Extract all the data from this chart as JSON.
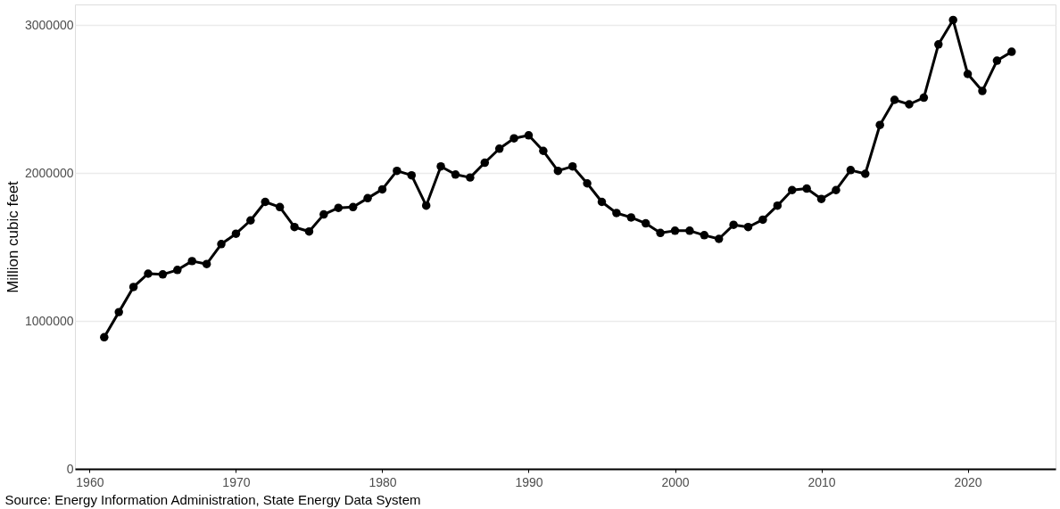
{
  "chart_data": {
    "type": "line",
    "ylabel": "Million cubic feet",
    "annotations": [
      "Source: Energy Information Administration, State Energy Data System"
    ],
    "x": [
      1961,
      1962,
      1963,
      1964,
      1965,
      1966,
      1967,
      1968,
      1969,
      1970,
      1971,
      1972,
      1973,
      1974,
      1975,
      1976,
      1977,
      1978,
      1979,
      1980,
      1981,
      1982,
      1983,
      1984,
      1985,
      1986,
      1987,
      1988,
      1989,
      1990,
      1991,
      1992,
      1993,
      1994,
      1995,
      1996,
      1997,
      1998,
      1999,
      2000,
      2001,
      2002,
      2003,
      2004,
      2005,
      2006,
      2007,
      2008,
      2009,
      2010,
      2011,
      2012,
      2013,
      2014,
      2015,
      2016,
      2017,
      2018,
      2019,
      2020,
      2021,
      2022,
      2023
    ],
    "series": [
      {
        "color": "#000000",
        "values": [
          890000,
          1060000,
          1230000,
          1320000,
          1315000,
          1345000,
          1405000,
          1385000,
          1520000,
          1590000,
          1680000,
          1805000,
          1770000,
          1635000,
          1605000,
          1720000,
          1765000,
          1770000,
          1830000,
          1890000,
          2015000,
          1985000,
          1780000,
          2045000,
          1990000,
          1970000,
          2070000,
          2165000,
          2235000,
          2255000,
          2150000,
          2015000,
          2045000,
          1930000,
          1805000,
          1730000,
          1700000,
          1660000,
          1595000,
          1610000,
          1610000,
          1580000,
          1555000,
          1650000,
          1635000,
          1685000,
          1780000,
          1885000,
          1895000,
          1825000,
          1885000,
          2020000,
          1995000,
          2325000,
          2495000,
          2465000,
          2510000,
          2870000,
          3035000,
          2670000,
          2555000,
          2760000,
          2820000
        ]
      }
    ],
    "xlim": [
      1959,
      2026
    ],
    "ylim": [
      0,
      3140000
    ],
    "xticks": [
      1960,
      1970,
      1980,
      1990,
      2000,
      2010,
      2020
    ],
    "yticks": [
      0,
      1000000,
      2000000,
      3000000
    ],
    "grid": "y",
    "marker": "circle",
    "line_style": "solid"
  }
}
